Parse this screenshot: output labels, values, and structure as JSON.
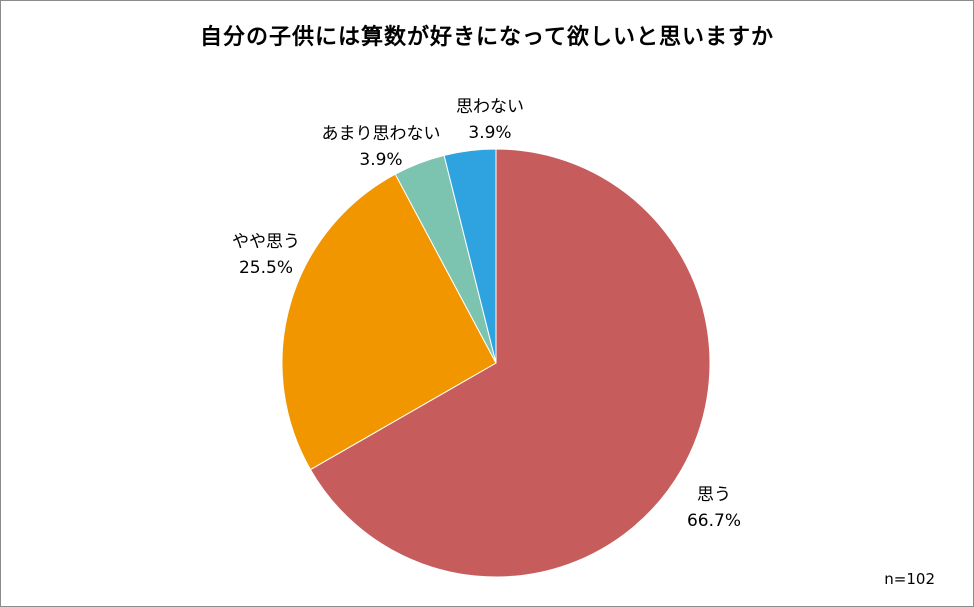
{
  "chart_data": {
    "type": "pie",
    "title": "自分の子供には算数が好きになって欲しいと思いますか",
    "note": "n=102",
    "slices": [
      {
        "name": "思う",
        "value": 66.7,
        "label": "66.7%",
        "color": "#c75c5c"
      },
      {
        "name": "やや思う",
        "value": 25.5,
        "label": "25.5%",
        "color": "#f29600"
      },
      {
        "name": "あまり思わない",
        "value": 3.9,
        "label": "3.9%",
        "color": "#7cc4b0"
      },
      {
        "name": "思わない",
        "value": 3.9,
        "label": "3.9%",
        "color": "#2ea3e0"
      }
    ]
  }
}
